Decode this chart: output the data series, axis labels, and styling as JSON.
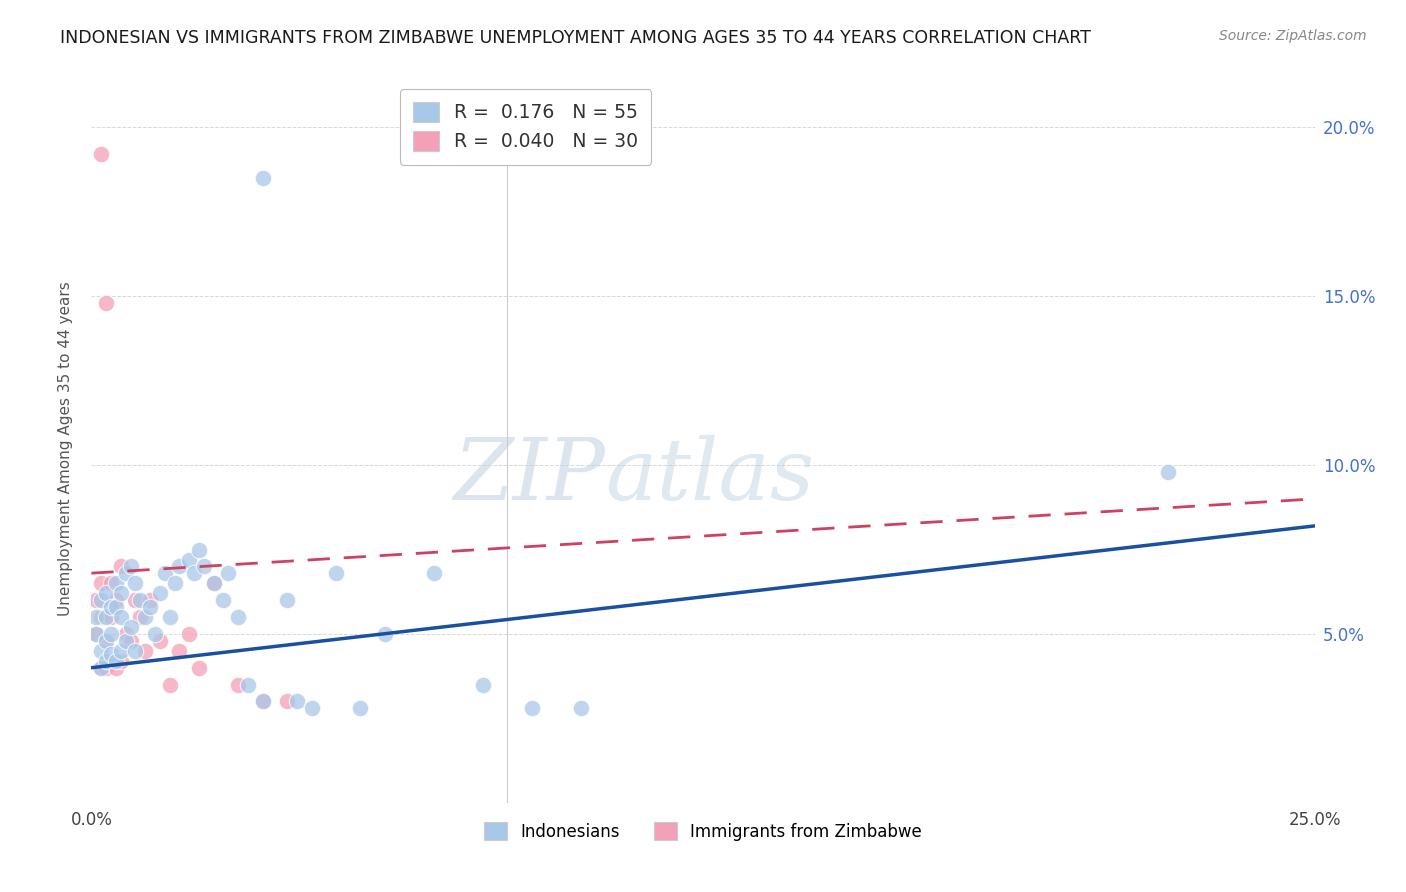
{
  "title": "INDONESIAN VS IMMIGRANTS FROM ZIMBABWE UNEMPLOYMENT AMONG AGES 35 TO 44 YEARS CORRELATION CHART",
  "source": "Source: ZipAtlas.com",
  "ylabel": "Unemployment Among Ages 35 to 44 years",
  "xmin": 0.0,
  "xmax": 0.25,
  "ymin": 0.0,
  "ymax": 0.21,
  "ytick_positions": [
    0.0,
    0.05,
    0.1,
    0.15,
    0.2
  ],
  "ytick_labels_right": [
    "",
    "5.0%",
    "10.0%",
    "15.0%",
    "20.0%"
  ],
  "xtick_positions": [
    0.0,
    0.05,
    0.1,
    0.15,
    0.2,
    0.25
  ],
  "xtick_labels": [
    "0.0%",
    "",
    "",
    "",
    "",
    "25.0%"
  ],
  "indonesian_color": "#a8c8e8",
  "zimbabwe_color": "#f4a0b8",
  "indonesian_line_color": "#1a50a0",
  "zimbabwe_line_color": "#d04060",
  "R_indonesian": 0.176,
  "N_indonesian": 55,
  "R_zimbabwe": 0.04,
  "N_zimbabwe": 30,
  "watermark_zip": "ZIP",
  "watermark_atlas": "atlas",
  "background_color": "#ffffff",
  "grid_color": "#d8d8d8",
  "indo_line_y0": 0.04,
  "indo_line_y1": 0.082,
  "zimb_line_y0": 0.068,
  "zimb_line_y1": 0.09,
  "indo_x": [
    0.001,
    0.001,
    0.002,
    0.002,
    0.002,
    0.003,
    0.003,
    0.003,
    0.003,
    0.004,
    0.004,
    0.004,
    0.005,
    0.005,
    0.005,
    0.006,
    0.006,
    0.006,
    0.007,
    0.007,
    0.008,
    0.008,
    0.009,
    0.009,
    0.01,
    0.011,
    0.012,
    0.013,
    0.014,
    0.015,
    0.016,
    0.017,
    0.018,
    0.02,
    0.021,
    0.022,
    0.023,
    0.025,
    0.027,
    0.028,
    0.03,
    0.032,
    0.035,
    0.04,
    0.042,
    0.045,
    0.05,
    0.055,
    0.06,
    0.07,
    0.08,
    0.09,
    0.1,
    0.22,
    0.035
  ],
  "indo_y": [
    0.055,
    0.05,
    0.06,
    0.045,
    0.04,
    0.062,
    0.055,
    0.048,
    0.042,
    0.058,
    0.05,
    0.044,
    0.065,
    0.058,
    0.042,
    0.062,
    0.055,
    0.045,
    0.068,
    0.048,
    0.07,
    0.052,
    0.065,
    0.045,
    0.06,
    0.055,
    0.058,
    0.05,
    0.062,
    0.068,
    0.055,
    0.065,
    0.07,
    0.072,
    0.068,
    0.075,
    0.07,
    0.065,
    0.06,
    0.068,
    0.055,
    0.035,
    0.03,
    0.06,
    0.03,
    0.028,
    0.068,
    0.028,
    0.05,
    0.068,
    0.035,
    0.028,
    0.028,
    0.098,
    0.185
  ],
  "zimb_x": [
    0.001,
    0.001,
    0.002,
    0.002,
    0.002,
    0.003,
    0.003,
    0.004,
    0.004,
    0.005,
    0.005,
    0.006,
    0.006,
    0.007,
    0.008,
    0.009,
    0.01,
    0.011,
    0.012,
    0.014,
    0.016,
    0.018,
    0.02,
    0.022,
    0.025,
    0.03,
    0.035,
    0.04,
    0.002,
    0.003
  ],
  "zimb_y": [
    0.06,
    0.05,
    0.065,
    0.055,
    0.04,
    0.048,
    0.04,
    0.065,
    0.055,
    0.06,
    0.04,
    0.07,
    0.042,
    0.05,
    0.048,
    0.06,
    0.055,
    0.045,
    0.06,
    0.048,
    0.035,
    0.045,
    0.05,
    0.04,
    0.065,
    0.035,
    0.03,
    0.03,
    0.192,
    0.148
  ]
}
